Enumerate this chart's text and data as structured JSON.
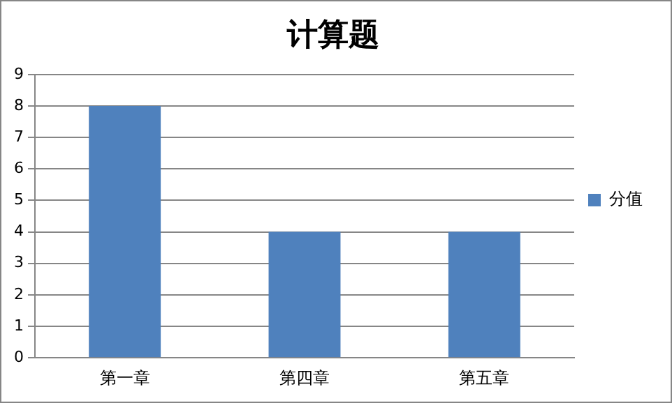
{
  "chart_data": {
    "type": "bar",
    "title": "计算题",
    "categories": [
      "第一章",
      "第四章",
      "第五章"
    ],
    "series": [
      {
        "name": "分值",
        "color": "#4f81bd",
        "values": [
          8,
          4,
          4
        ]
      }
    ],
    "ylim": [
      0,
      9
    ],
    "yticks": [
      0,
      1,
      2,
      3,
      4,
      5,
      6,
      7,
      8,
      9
    ],
    "grid": "y",
    "legend": "right"
  }
}
